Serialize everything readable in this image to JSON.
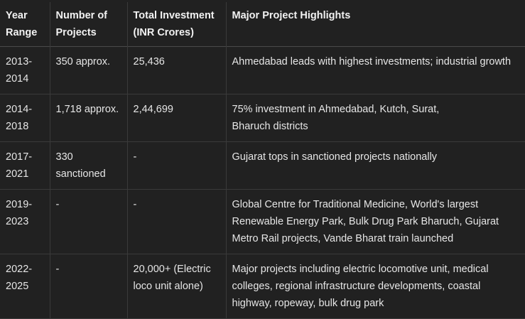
{
  "table": {
    "headers": [
      "Year Range",
      "Number of Projects",
      "Total Investment (INR Crores)",
      "Major Project Highlights"
    ],
    "rows": [
      {
        "year": "2013-2014",
        "projects": "350 approx.",
        "investment": "25,436",
        "highlights": "Ahmedabad leads with highest investments; industrial growth"
      },
      {
        "year": "2014-2018",
        "projects": "1,718 approx.",
        "investment": "2,44,699",
        "highlights": "75% investment in Ahmedabad, Kutch, Surat, Bharuch districts"
      },
      {
        "year": "2017-2021",
        "projects": "330 sanctioned",
        "investment": "-",
        "highlights": "Gujarat tops in sanctioned projects nationally"
      },
      {
        "year": "2019-2023",
        "projects": "-",
        "investment": "-",
        "highlights": "Global Centre for Traditional Medicine, World's largest Renewable Energy Park, Bulk Drug Park Bharuch, Gujarat Metro Rail projects, Vande Bharat train launched"
      },
      {
        "year": "2022-2025",
        "projects": "-",
        "investment": "20,000+ (Electric loco unit alone)",
        "highlights": "Major projects including electric locomotive unit, medical colleges, regional infrastructure developments, coastal highway, ropeway, bulk drug park"
      }
    ]
  }
}
